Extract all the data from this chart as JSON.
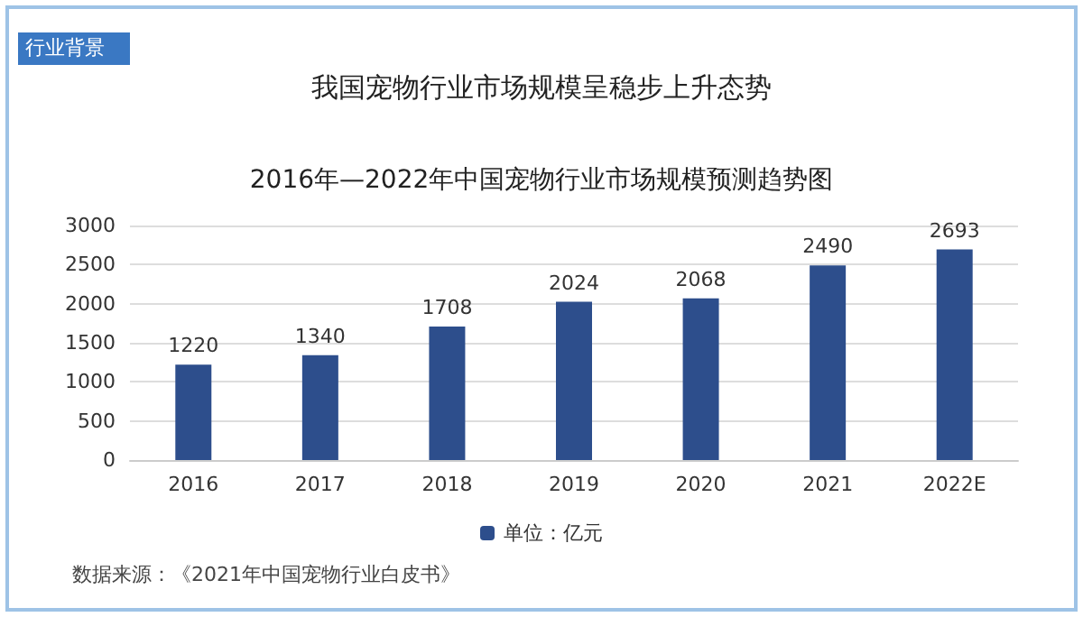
{
  "chart_data": {
    "type": "bar",
    "title": "我国宠物行业市场规模呈稳步上升态势",
    "subtitle": "2016年—2022年中国宠物行业市场规模预测趋势图",
    "categories": [
      "2016",
      "2017",
      "2018",
      "2019",
      "2020",
      "2021",
      "2022E"
    ],
    "series": [
      {
        "name": "单位：亿元",
        "color": "#2d4e8c",
        "values": [
          1220,
          1340,
          1708,
          2024,
          2068,
          2490,
          2693
        ]
      }
    ],
    "ylim": [
      0,
      3000
    ],
    "yticks": [
      0,
      500,
      1000,
      1500,
      2000,
      2500,
      3000
    ],
    "grid": "y",
    "legend": "bottom",
    "data_labels": true,
    "annotations": [
      "行业背景",
      "数据来源：《2021年中国宠物行业白皮书》"
    ]
  }
}
